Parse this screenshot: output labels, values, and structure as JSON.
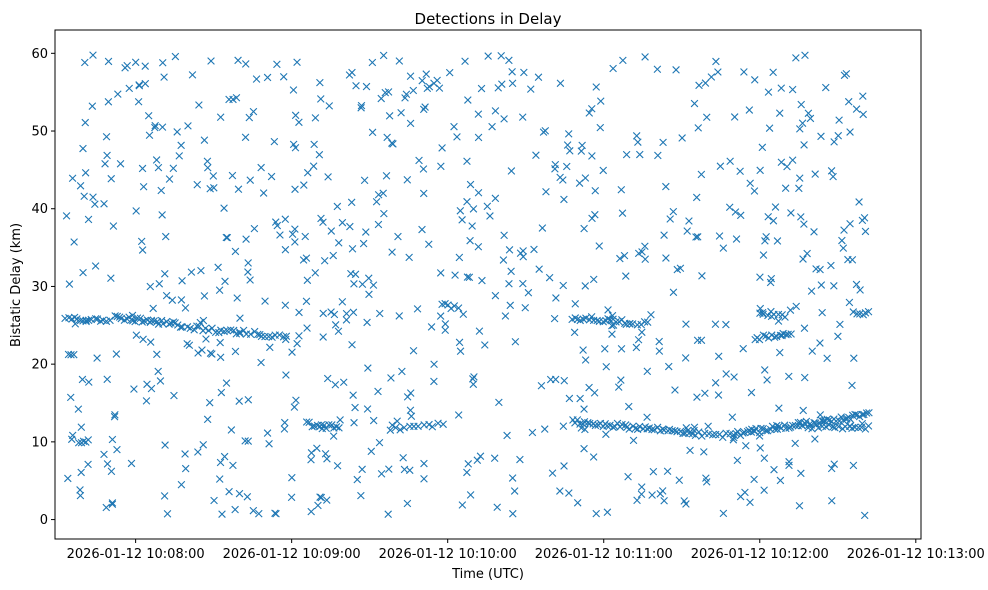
{
  "chart_data": {
    "type": "scatter",
    "title": "Detections in Delay",
    "xlabel": "Time (UTC)",
    "ylabel": "Bistatic Delay (km)",
    "marker": "x",
    "color": "#1f77b4",
    "xlim_seconds": [
      -31,
      302
    ],
    "ylim": [
      -2.5,
      63
    ],
    "xticks": [
      {
        "t": 0,
        "label": "2026-01-12 10:08:00"
      },
      {
        "t": 60,
        "label": "2026-01-12 10:09:00"
      },
      {
        "t": 120,
        "label": "2026-01-12 10:10:00"
      },
      {
        "t": 180,
        "label": "2026-01-12 10:11:00"
      },
      {
        "t": 240,
        "label": "2026-01-12 10:12:00"
      },
      {
        "t": 300,
        "label": "2026-01-12 10:13:00"
      }
    ],
    "yticks": [
      0,
      10,
      20,
      30,
      40,
      50,
      60
    ],
    "time_range_seconds": [
      -27,
      281
    ],
    "tracks": [
      {
        "t0": -27,
        "t1": -10,
        "y0": 26.0,
        "y1": 25.6,
        "n": 16
      },
      {
        "t0": -8,
        "t1": 18,
        "y0": 26.0,
        "y1": 25.0,
        "n": 30
      },
      {
        "t0": 20,
        "t1": 40,
        "y0": 24.8,
        "y1": 24.0,
        "n": 18
      },
      {
        "t0": 40,
        "t1": 58,
        "y0": 24.2,
        "y1": 23.4,
        "n": 14
      },
      {
        "t0": 66,
        "t1": 78,
        "y0": 12.3,
        "y1": 11.8,
        "n": 14
      },
      {
        "t0": 98,
        "t1": 118,
        "y0": 11.6,
        "y1": 12.2,
        "n": 12
      },
      {
        "t0": 118,
        "t1": 124,
        "y0": 27.6,
        "y1": 27.3,
        "n": 6
      },
      {
        "t0": 168,
        "t1": 190,
        "y0": 26.0,
        "y1": 25.4,
        "n": 22
      },
      {
        "t0": 190,
        "t1": 197,
        "y0": 25.4,
        "y1": 25.1,
        "n": 6
      },
      {
        "t0": 168,
        "t1": 215,
        "y0": 12.6,
        "y1": 11.2,
        "n": 50
      },
      {
        "t0": 215,
        "t1": 230,
        "y0": 11.0,
        "y1": 10.8,
        "n": 12
      },
      {
        "t0": 230,
        "t1": 282,
        "y0": 11.0,
        "y1": 13.5,
        "n": 60
      },
      {
        "t0": 238,
        "t1": 252,
        "y0": 23.3,
        "y1": 23.9,
        "n": 14
      },
      {
        "t0": 240,
        "t1": 250,
        "y0": 26.4,
        "y1": 26.2,
        "n": 8
      },
      {
        "t0": 255,
        "t1": 282,
        "y0": 12.0,
        "y1": 11.9,
        "n": 22
      },
      {
        "t0": 276,
        "t1": 282,
        "y0": 26.8,
        "y1": 26.5,
        "n": 6
      },
      {
        "t0": -22,
        "t1": -18,
        "y0": 10.0,
        "y1": 10.0,
        "n": 5
      },
      {
        "t0": -26,
        "t1": -24,
        "y0": 21.2,
        "y1": 21.2,
        "n": 3
      }
    ],
    "clutter": {
      "n": 780,
      "y_range": [
        0.5,
        59.8
      ]
    }
  }
}
